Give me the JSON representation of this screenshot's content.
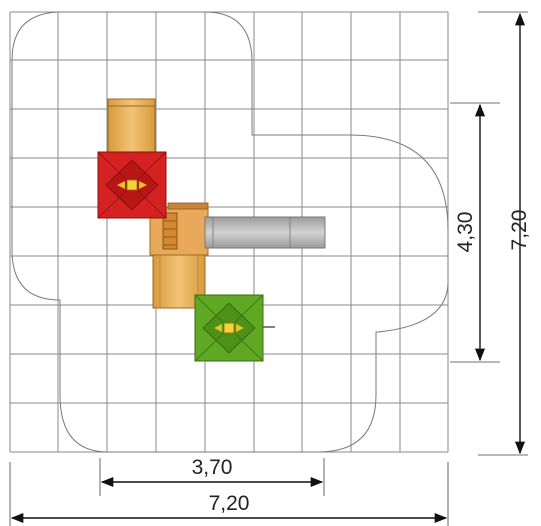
{
  "dimensions": {
    "total_width": "7,20",
    "total_height": "7,20",
    "structure_width": "3,70",
    "structure_height": "4,30"
  },
  "colors": {
    "grid": "#8a8a8a",
    "safety_zone": "#7a7a7a",
    "wood": "#e8b25c",
    "roof_red": "#d42222",
    "roof_green": "#5fa823",
    "slide": "#b8b8b8"
  },
  "elements": [
    "safety-zone-outline",
    "grid",
    "red-roof-tower",
    "green-roof-tower",
    "wooden-deck",
    "ladder",
    "slide"
  ]
}
